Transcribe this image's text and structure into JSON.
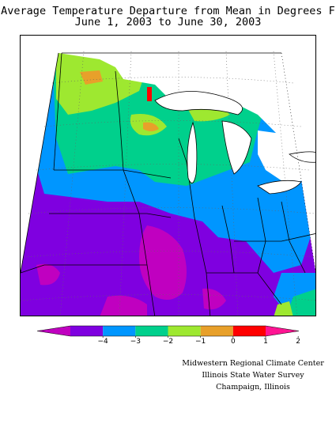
{
  "title": {
    "line1": "Average Temperature Departure from Mean in Degrees F",
    "line2": "June 1, 2003 to June 30, 2003"
  },
  "legend": {
    "colors": [
      "#c000c0",
      "#7f00e0",
      "#0096ff",
      "#00d08c",
      "#9ee830",
      "#e8a02a",
      "#ff0000",
      "#ff1493"
    ],
    "tick_labels": [
      "−4",
      "−3",
      "−2",
      "−1",
      "0",
      "1",
      "2"
    ],
    "tick_values": [
      -4,
      -3,
      -2,
      -1,
      0,
      1,
      2
    ]
  },
  "credits": {
    "line1": "Midwestern Regional Climate Center",
    "line2": "Illinois State Water Survey",
    "line3": "Champaign, Illinois"
  }
}
